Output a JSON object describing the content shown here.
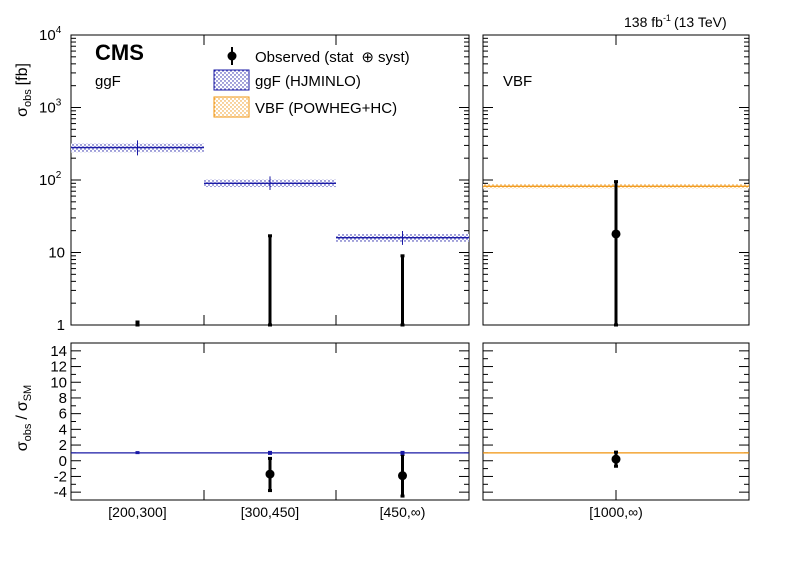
{
  "header": {
    "experiment": "CMS",
    "lumi_value": "138 fb",
    "lumi_exp": "-1",
    "energy": "(13 TeV)"
  },
  "legend": {
    "observed": "Observed (stat",
    "observed_oplus": "⊕",
    "observed_syst": "syst)",
    "ggf": "ggF (HJMINLO)",
    "vbf": "VBF (POWHEG+HC)",
    "position": "top"
  },
  "colors": {
    "ggf": "#1a1aa6",
    "vbf": "#f0940f",
    "observed": "#000000"
  },
  "axes": {
    "top_ylabel_main": "σ",
    "top_ylabel_sub": "obs",
    "top_ylabel_unit": "[fb]",
    "bottom_ylabel_num": "σ",
    "bottom_ylabel_num_sub": "obs",
    "bottom_ylabel_slash": "/",
    "bottom_ylabel_den": "σ",
    "bottom_ylabel_den_sub": "SM",
    "top_yticks": [
      {
        "v": 1,
        "text": "1"
      },
      {
        "v": 10,
        "text": "10"
      },
      {
        "v": 100,
        "text": "10",
        "exp": "2"
      },
      {
        "v": 1000,
        "text": "10",
        "exp": "3"
      },
      {
        "v": 10000,
        "text": "10",
        "exp": "4"
      }
    ],
    "bottom_yticks": [
      "-4",
      "-2",
      "0",
      "2",
      "4",
      "6",
      "8",
      "10",
      "12",
      "14"
    ],
    "top_ylim": [
      1,
      10000
    ],
    "top_yscale": "log",
    "bottom_ylim": [
      -5,
      15
    ],
    "grid": false
  },
  "chart_data": [
    {
      "type": "scatter",
      "panel": "top-left",
      "label": "ggF",
      "categories": [
        "[200,300]",
        "[300,450]",
        "[450,∞)"
      ],
      "series": [
        {
          "name": "Observed (stat ⊕ syst)",
          "values": [
            1.05,
            1.0,
            1.0
          ],
          "err_low": [
            1.0,
            1.0,
            1.0
          ],
          "err_high": [
            1.1,
            17,
            9
          ]
        },
        {
          "name": "ggF (HJMINLO)",
          "values": [
            280,
            90,
            16
          ],
          "unc_low": [
            240,
            80,
            14
          ],
          "unc_high": [
            320,
            102,
            18
          ]
        }
      ],
      "ylim": [
        1,
        10000
      ]
    },
    {
      "type": "scatter",
      "panel": "top-right",
      "label": "VBF",
      "categories": [
        "[1000,∞)"
      ],
      "series": [
        {
          "name": "Observed (stat ⊕ syst)",
          "values": [
            18
          ],
          "err_low": [
            1
          ],
          "err_high": [
            95
          ]
        },
        {
          "name": "VBF (POWHEG+HC)",
          "values": [
            82
          ],
          "unc_low": [
            76
          ],
          "unc_high": [
            88
          ]
        }
      ],
      "ylim": [
        1,
        10000
      ]
    },
    {
      "type": "scatter",
      "panel": "bottom-left",
      "categories": [
        "[200,300]",
        "[300,450]",
        "[450,∞)"
      ],
      "series": [
        {
          "name": "Observed (stat ⊕ syst)",
          "values": [
            1.0,
            -1.7,
            -1.9
          ],
          "err_low": [
            0.9,
            -3.8,
            -4.5
          ],
          "err_high": [
            1.1,
            0.3,
            0.8
          ]
        }
      ],
      "reference": 1,
      "ylim": [
        -5,
        15
      ]
    },
    {
      "type": "scatter",
      "panel": "bottom-right",
      "categories": [
        "[1000,∞)"
      ],
      "series": [
        {
          "name": "Observed (stat ⊕ syst)",
          "values": [
            0.2
          ],
          "err_low": [
            -0.7
          ],
          "err_high": [
            1.1
          ]
        }
      ],
      "reference": 1,
      "ylim": [
        -5,
        15
      ]
    }
  ]
}
